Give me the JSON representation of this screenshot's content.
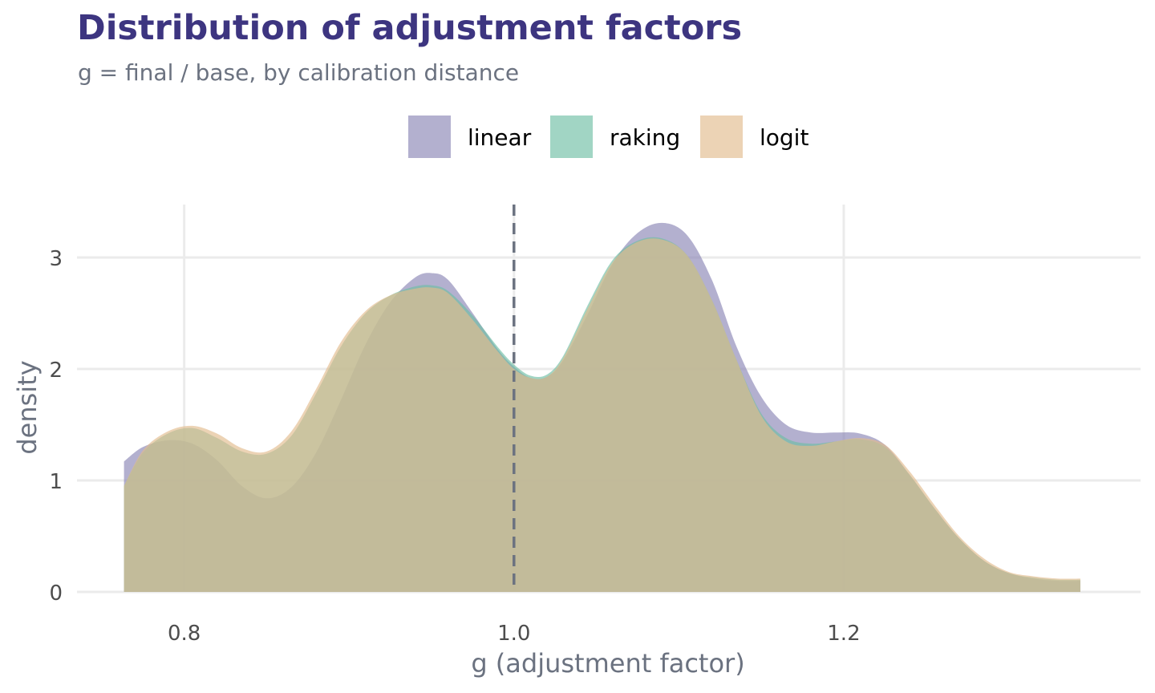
{
  "chart_data": {
    "type": "area",
    "title": "Distribution of adjustment factors",
    "subtitle": "g = final / base, by calibration distance",
    "xlabel": "g (adjustment factor)",
    "ylabel": "density",
    "xlim": [
      0.735,
      1.38
    ],
    "ylim": [
      0,
      3.45
    ],
    "x_ticks": [
      {
        "value": 0.8,
        "label": "0.8"
      },
      {
        "value": 1.0,
        "label": "1.0"
      },
      {
        "value": 1.2,
        "label": "1.2"
      }
    ],
    "y_ticks": [
      {
        "value": 0,
        "label": "0"
      },
      {
        "value": 1,
        "label": "1"
      },
      {
        "value": 2,
        "label": "2"
      },
      {
        "value": 3,
        "label": "3"
      }
    ],
    "grid": true,
    "legend_position": "top",
    "reference_line": {
      "x": 1.0,
      "style": "dashed",
      "color": "#6b7280"
    },
    "series": [
      {
        "name": "linear",
        "color": "#8a85b5",
        "x": [
          0.7635,
          0.775,
          0.79,
          0.805,
          0.82,
          0.835,
          0.85,
          0.865,
          0.88,
          0.895,
          0.91,
          0.925,
          0.94,
          0.95,
          0.96,
          0.975,
          0.99,
          1.0,
          1.01,
          1.02,
          1.03,
          1.045,
          1.06,
          1.075,
          1.09,
          1.105,
          1.12,
          1.135,
          1.15,
          1.165,
          1.18,
          1.195,
          1.21,
          1.225,
          1.24,
          1.255,
          1.27,
          1.285,
          1.3,
          1.315,
          1.33,
          1.3435
        ],
        "y": [
          1.17,
          1.3,
          1.36,
          1.33,
          1.18,
          0.95,
          0.84,
          0.94,
          1.25,
          1.72,
          2.22,
          2.6,
          2.82,
          2.86,
          2.8,
          2.5,
          2.18,
          2.02,
          1.92,
          1.93,
          2.08,
          2.5,
          2.95,
          3.22,
          3.31,
          3.2,
          2.8,
          2.2,
          1.75,
          1.5,
          1.43,
          1.43,
          1.42,
          1.32,
          1.05,
          0.75,
          0.48,
          0.28,
          0.17,
          0.12,
          0.1,
          0.1
        ]
      },
      {
        "name": "raking",
        "color": "#6fbfa5",
        "x": [
          0.7635,
          0.775,
          0.79,
          0.805,
          0.82,
          0.835,
          0.85,
          0.865,
          0.88,
          0.895,
          0.91,
          0.925,
          0.94,
          0.95,
          0.96,
          0.975,
          0.99,
          1.0,
          1.01,
          1.02,
          1.03,
          1.045,
          1.06,
          1.075,
          1.09,
          1.105,
          1.12,
          1.135,
          1.15,
          1.165,
          1.18,
          1.195,
          1.21,
          1.225,
          1.24,
          1.255,
          1.27,
          1.285,
          1.3,
          1.315,
          1.33,
          1.3435
        ],
        "y": [
          0.95,
          1.25,
          1.42,
          1.47,
          1.38,
          1.26,
          1.24,
          1.4,
          1.78,
          2.2,
          2.5,
          2.66,
          2.74,
          2.75,
          2.7,
          2.48,
          2.2,
          2.04,
          1.94,
          1.95,
          2.12,
          2.58,
          2.98,
          3.15,
          3.17,
          3.02,
          2.62,
          2.08,
          1.6,
          1.38,
          1.33,
          1.35,
          1.37,
          1.3,
          1.05,
          0.75,
          0.48,
          0.28,
          0.17,
          0.13,
          0.11,
          0.11
        ]
      },
      {
        "name": "logit",
        "color": "#e2bb8e",
        "x": [
          0.7635,
          0.775,
          0.79,
          0.805,
          0.82,
          0.835,
          0.85,
          0.865,
          0.88,
          0.895,
          0.91,
          0.925,
          0.94,
          0.95,
          0.96,
          0.975,
          0.99,
          1.0,
          1.01,
          1.02,
          1.03,
          1.045,
          1.06,
          1.075,
          1.09,
          1.105,
          1.12,
          1.135,
          1.15,
          1.165,
          1.18,
          1.195,
          1.21,
          1.225,
          1.24,
          1.255,
          1.27,
          1.285,
          1.3,
          1.315,
          1.33,
          1.3435
        ],
        "y": [
          0.95,
          1.27,
          1.44,
          1.49,
          1.42,
          1.29,
          1.26,
          1.44,
          1.82,
          2.24,
          2.52,
          2.66,
          2.72,
          2.73,
          2.68,
          2.44,
          2.16,
          2.0,
          1.92,
          1.93,
          2.1,
          2.55,
          2.96,
          3.14,
          3.16,
          3.02,
          2.62,
          2.08,
          1.58,
          1.35,
          1.31,
          1.35,
          1.38,
          1.32,
          1.08,
          0.78,
          0.5,
          0.3,
          0.18,
          0.14,
          0.12,
          0.12
        ]
      }
    ]
  }
}
